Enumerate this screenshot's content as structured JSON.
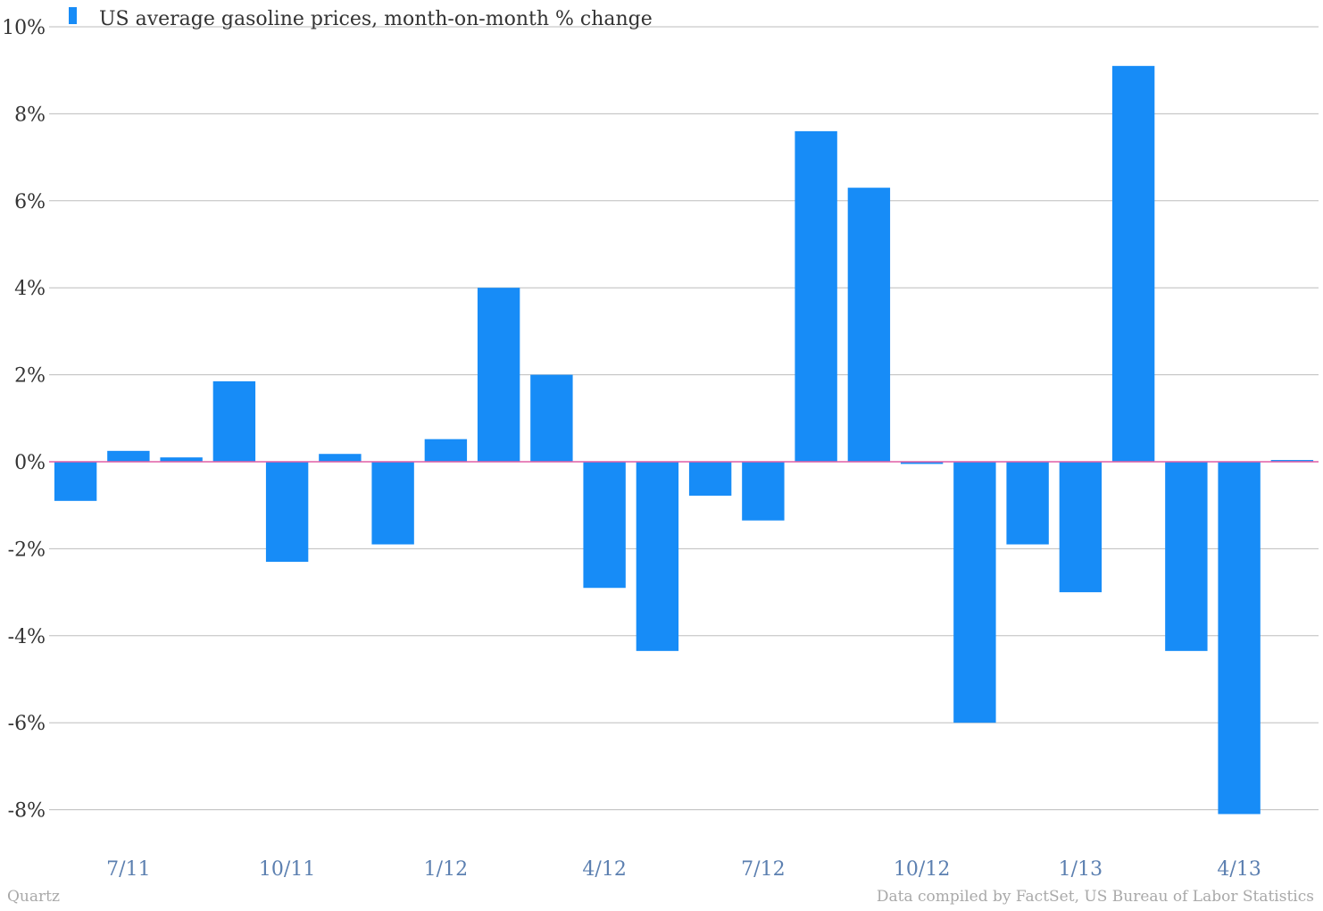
{
  "chart_data": {
    "type": "bar",
    "categories": [
      "6/11",
      "7/11",
      "8/11",
      "9/11",
      "10/11",
      "11/11",
      "12/11",
      "1/12",
      "2/12",
      "3/12",
      "4/12",
      "5/12",
      "6/12",
      "7/12",
      "8/12",
      "9/12",
      "10/12",
      "11/12",
      "12/12",
      "1/13",
      "2/13",
      "3/13",
      "4/13",
      "5/13"
    ],
    "series": [
      {
        "name": "US average gasoline prices, month-on-month % change",
        "color": "#178cf7",
        "values": [
          -0.9,
          0.25,
          0.1,
          1.85,
          -2.3,
          0.18,
          -1.9,
          0.52,
          4.0,
          2.0,
          -2.9,
          -4.35,
          -0.78,
          -1.35,
          7.6,
          6.3,
          -0.05,
          -6.0,
          -1.9,
          -3.0,
          9.1,
          -4.35,
          -8.1,
          0.04
        ]
      }
    ],
    "x_tick_labels": [
      "7/11",
      "10/11",
      "1/12",
      "4/12",
      "7/12",
      "10/12",
      "1/13",
      "4/13"
    ],
    "y_tick_labels": [
      "10%",
      "8%",
      "6%",
      "4%",
      "2%",
      "0%",
      "-2%",
      "-4%",
      "-6%",
      "-8%"
    ],
    "y_ticks": [
      10,
      8,
      6,
      4,
      2,
      0,
      -2,
      -4,
      -6,
      -8
    ],
    "ylim": [
      -8.9,
      10
    ],
    "zero_line_color": "#e05fa6",
    "grid": true,
    "legend_position": "top-left",
    "source": "Data compiled by FactSet, US Bureau of Labor Statistics",
    "credit": "Quartz"
  }
}
